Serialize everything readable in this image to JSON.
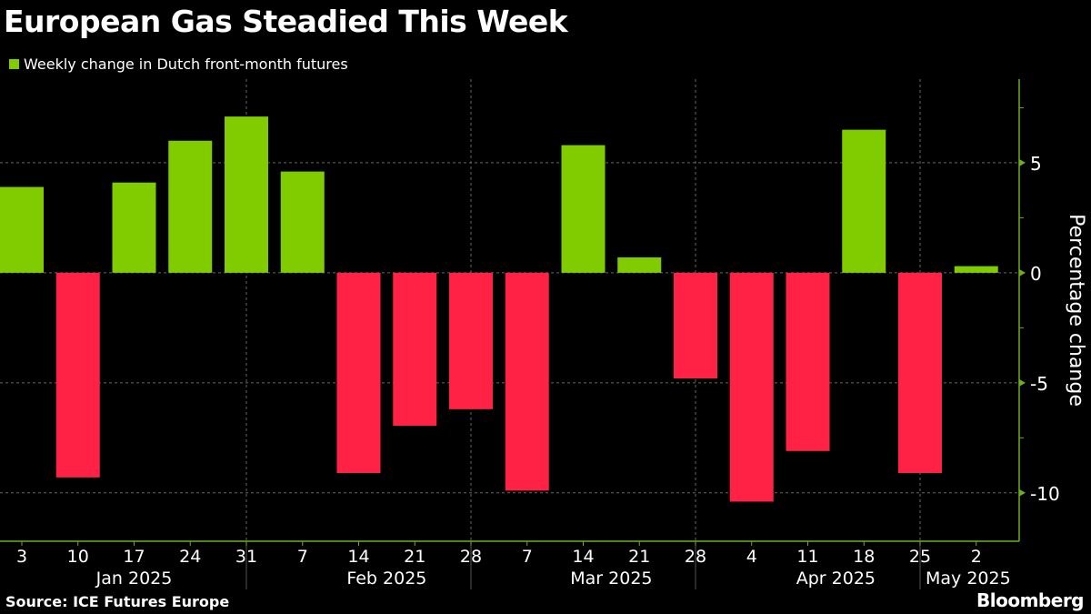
{
  "chart_data": {
    "type": "bar",
    "title": "European Gas Steadied This Week",
    "legend": "Weekly change in Dutch front-month futures",
    "ylabel": "Percentage change",
    "xlabel": "",
    "ylim": [
      -12.2,
      8.8
    ],
    "yticks": [
      5,
      0,
      -5,
      -10
    ],
    "categories": [
      "3",
      "10",
      "17",
      "24",
      "31",
      "7",
      "14",
      "21",
      "28",
      "7",
      "14",
      "21",
      "28",
      "4",
      "11",
      "18",
      "25",
      "2"
    ],
    "months": [
      {
        "label": "Jan 2025",
        "from": 0,
        "to": 4
      },
      {
        "label": "Feb 2025",
        "from": 5,
        "to": 8
      },
      {
        "label": "Mar 2025",
        "from": 9,
        "to": 12
      },
      {
        "label": "Apr 2025",
        "from": 13,
        "to": 16
      },
      {
        "label": "May 2025",
        "from": 17,
        "to": 17
      }
    ],
    "month_separators_after": [
      4,
      8,
      12,
      16
    ],
    "values": [
      3.9,
      -9.3,
      4.1,
      6.0,
      7.1,
      4.6,
      -9.1,
      -6.95,
      -6.2,
      -9.9,
      5.8,
      0.7,
      -4.8,
      -10.4,
      -8.1,
      6.5,
      -9.1,
      0.3
    ],
    "grid": true,
    "legend_position": "top-left",
    "colors": {
      "positive": "#80cc00",
      "negative": "#ff2244",
      "axis": "#6fae1f",
      "grid": "#666666"
    }
  },
  "source": "Source: ICE Futures Europe",
  "brand": "Bloomberg"
}
